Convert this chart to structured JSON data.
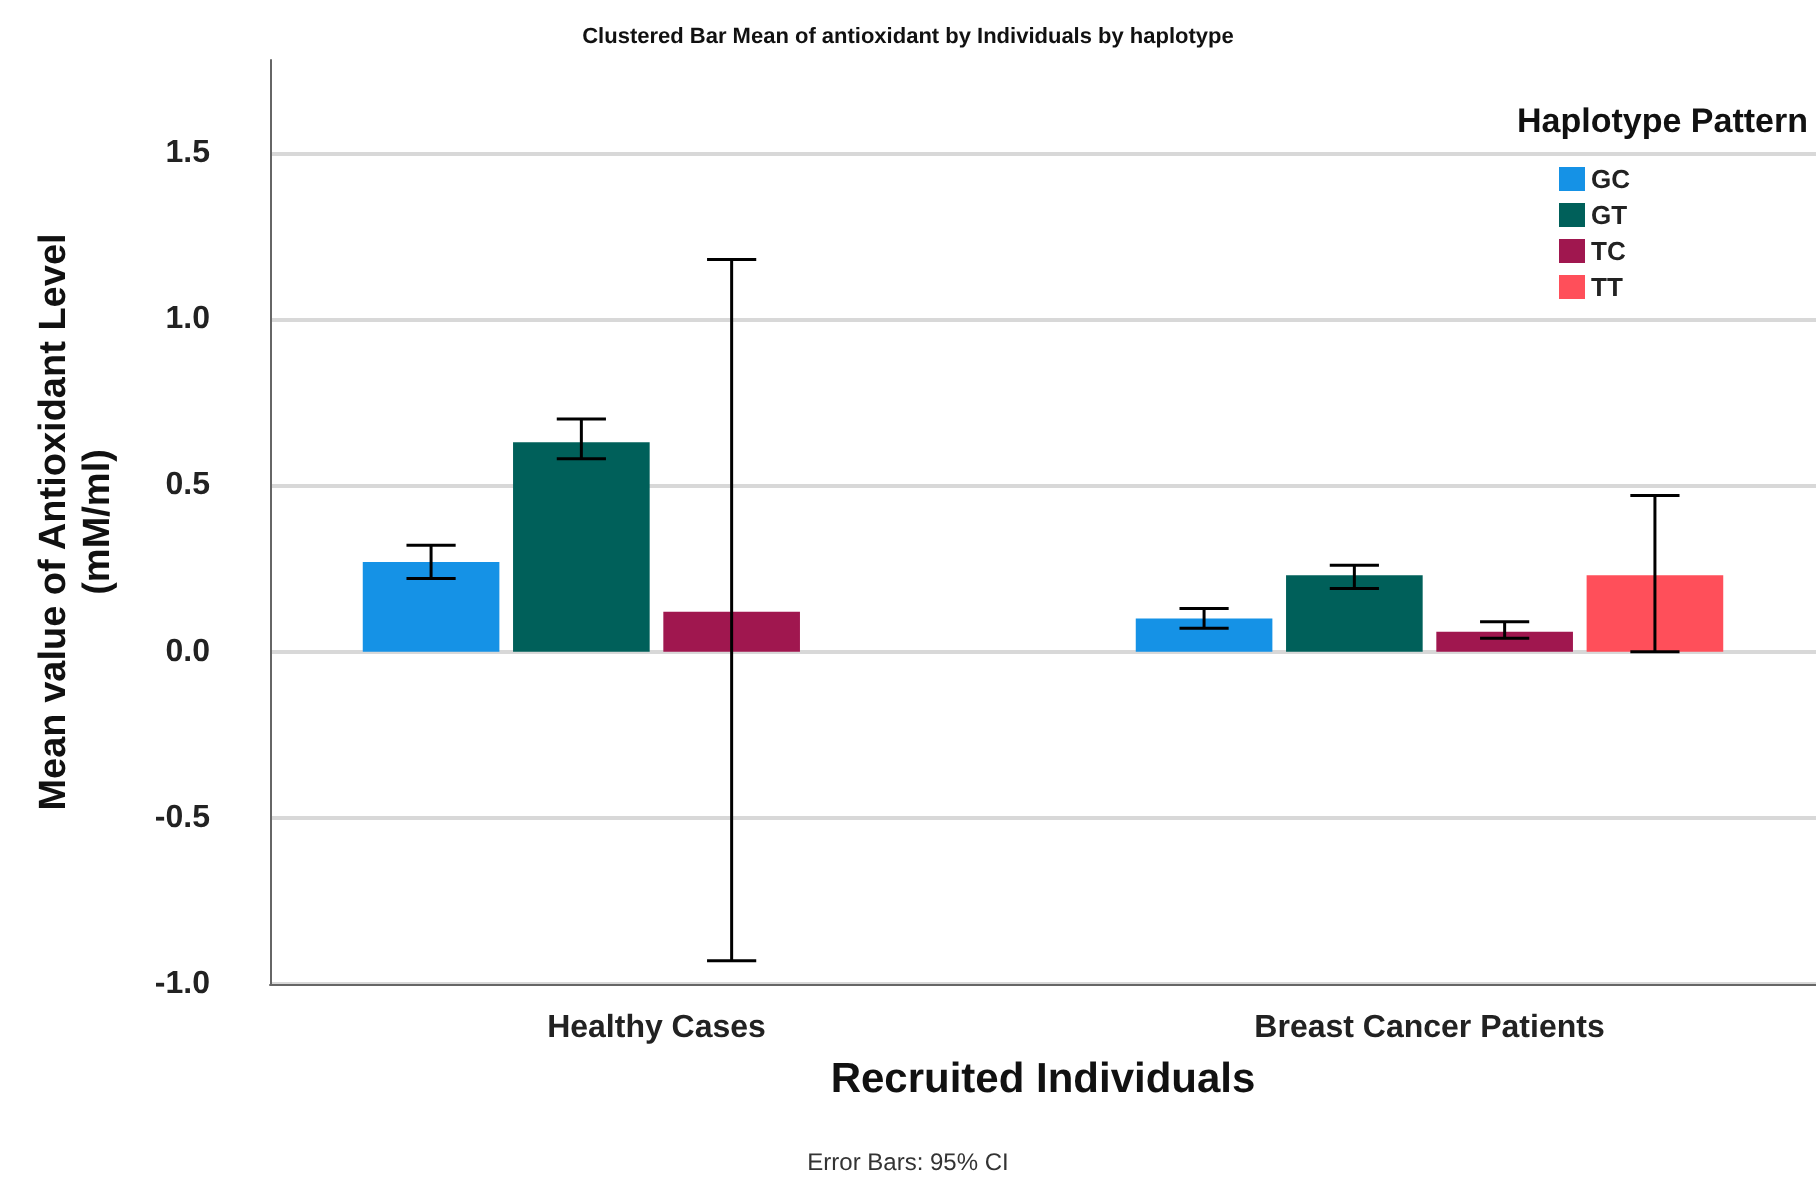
{
  "chart_data": {
    "type": "bar",
    "title": "Clustered Bar Mean of antioxidant by Individuals by haplotype",
    "xlabel": "Recruited Individuals",
    "ylabel": "Mean value of Antioxidant Level\n(mM/ml)",
    "legend_title": "Haplotype Pattern",
    "legend": "top right",
    "grid": "y",
    "annotations": [
      "Error Bars: 95% CI"
    ],
    "categories": [
      "Healthy Cases",
      "Breast Cancer Patients"
    ],
    "ylim": [
      -1,
      1.78
    ],
    "yticks": [
      {
        "value": -1,
        "label": "-1.0"
      },
      {
        "value": -0.5,
        "label": "-0.5"
      },
      {
        "value": 0,
        "label": "0.0"
      },
      {
        "value": 0.5,
        "label": "0.5"
      },
      {
        "value": 1,
        "label": "1.0"
      },
      {
        "value": 1.5,
        "label": "1.5"
      }
    ],
    "series": [
      {
        "name": "GC",
        "color": "#1592e6",
        "values": [
          0.27,
          0.1
        ],
        "errors": [
          [
            0.22,
            0.32
          ],
          [
            0.07,
            0.13
          ]
        ]
      },
      {
        "name": "GT",
        "color": "#00605a",
        "values": [
          0.63,
          0.23
        ],
        "errors": [
          [
            0.58,
            0.7
          ],
          [
            0.19,
            0.26
          ]
        ]
      },
      {
        "name": "TC",
        "color": "#a0174f",
        "values": [
          0.12,
          0.06
        ],
        "errors": [
          [
            -0.93,
            1.18
          ],
          [
            0.04,
            0.09
          ]
        ]
      },
      {
        "name": "TT",
        "color": "#ff4f5a",
        "values": [
          null,
          0.23
        ],
        "errors": [
          null,
          [
            0.0,
            0.47
          ]
        ]
      }
    ]
  }
}
